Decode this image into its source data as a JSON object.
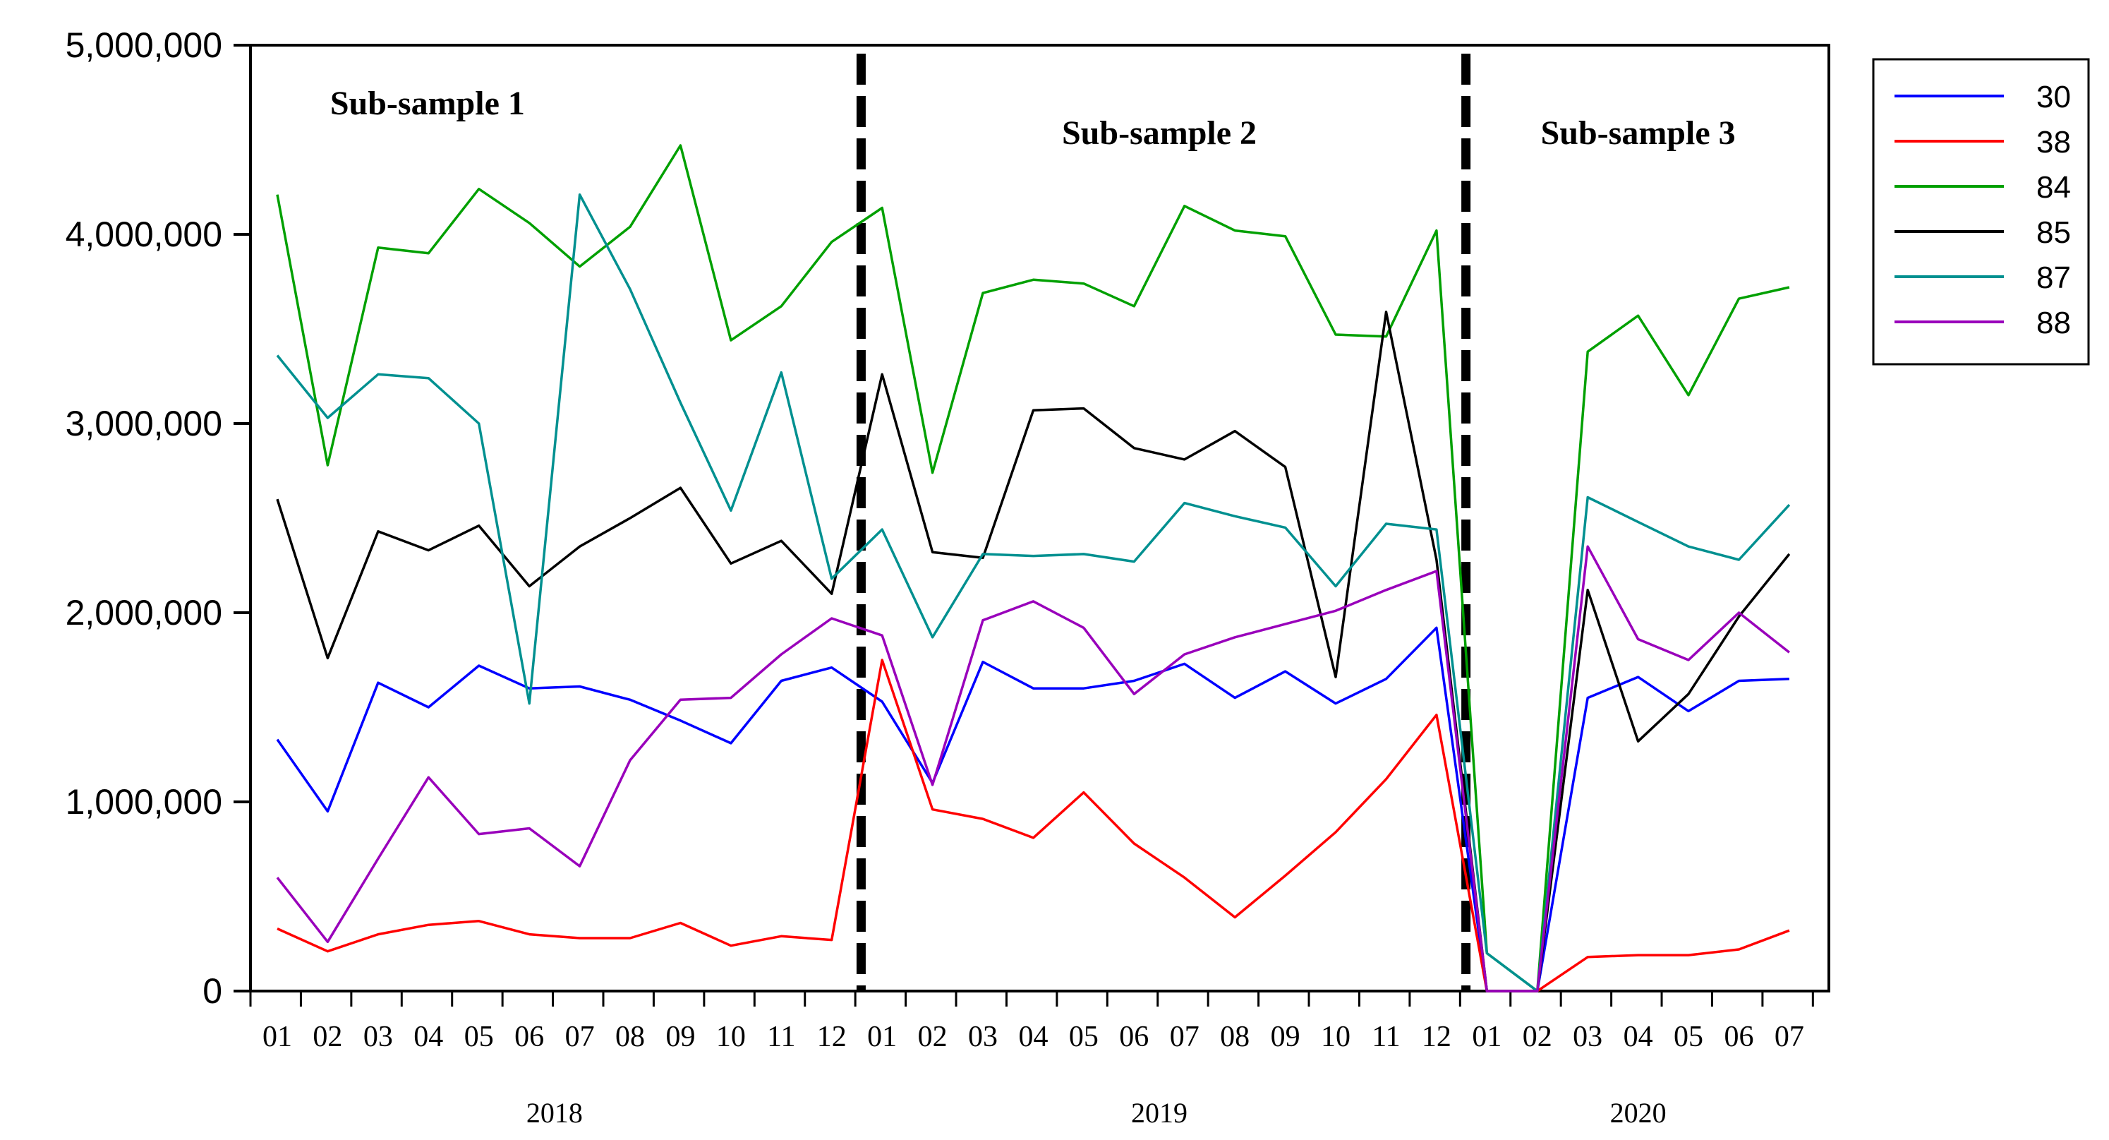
{
  "chart_data": {
    "type": "line",
    "title": "",
    "xlabel": "",
    "ylabel": "",
    "ylim": [
      0,
      5000000
    ],
    "yticks": [
      0,
      1000000,
      2000000,
      3000000,
      4000000,
      5000000
    ],
    "ytick_labels": [
      "0",
      "1,000,000",
      "2,000,000",
      "3,000,000",
      "4,000,000",
      "5,000,000"
    ],
    "categories": [
      "01",
      "02",
      "03",
      "04",
      "05",
      "06",
      "07",
      "08",
      "09",
      "10",
      "11",
      "12",
      "01",
      "02",
      "03",
      "04",
      "05",
      "06",
      "07",
      "08",
      "09",
      "10",
      "11",
      "12",
      "01",
      "02",
      "03",
      "04",
      "05",
      "06",
      "07"
    ],
    "years": [
      {
        "label": "2018",
        "start": 0,
        "end": 11
      },
      {
        "label": "2019",
        "start": 12,
        "end": 23
      },
      {
        "label": "2020",
        "start": 24,
        "end": 30
      }
    ],
    "regions": [
      {
        "label": "Sub-sample 1",
        "start": 0,
        "end": 11
      },
      {
        "label": "Sub-sample 2",
        "start": 12,
        "end": 23
      },
      {
        "label": "Sub-sample 3",
        "start": 24,
        "end": 30
      }
    ],
    "breaks_after_index": [
      11,
      23
    ],
    "legend_position": "top-right outside",
    "series": [
      {
        "name": "30",
        "color": "#0000ff",
        "values": [
          1330000,
          950000,
          1630000,
          1500000,
          1720000,
          1600000,
          1610000,
          1540000,
          1430000,
          1310000,
          1640000,
          1710000,
          1530000,
          1100000,
          1740000,
          1600000,
          1600000,
          1640000,
          1730000,
          1550000,
          1690000,
          1520000,
          1650000,
          1920000,
          0,
          0,
          1550000,
          1660000,
          1480000,
          1640000,
          1650000
        ]
      },
      {
        "name": "38",
        "color": "#ff0000",
        "values": [
          330000,
          210000,
          300000,
          350000,
          370000,
          300000,
          280000,
          280000,
          360000,
          240000,
          290000,
          270000,
          1750000,
          960000,
          910000,
          810000,
          1050000,
          780000,
          600000,
          390000,
          610000,
          840000,
          1120000,
          1460000,
          0,
          0,
          180000,
          190000,
          190000,
          220000,
          320000
        ]
      },
      {
        "name": "84",
        "color": "#00a000",
        "values": [
          4210000,
          2780000,
          3930000,
          3900000,
          4240000,
          4060000,
          3830000,
          4040000,
          4470000,
          3440000,
          3620000,
          3960000,
          4140000,
          2740000,
          3690000,
          3760000,
          3740000,
          3620000,
          4150000,
          4020000,
          3990000,
          3470000,
          3460000,
          4020000,
          200000,
          0,
          3380000,
          3570000,
          3150000,
          3660000,
          3720000
        ]
      },
      {
        "name": "85",
        "color": "#000000",
        "values": [
          2600000,
          1760000,
          2430000,
          2330000,
          2460000,
          2140000,
          2350000,
          2500000,
          2660000,
          2260000,
          2380000,
          2100000,
          3260000,
          2320000,
          2290000,
          3070000,
          3080000,
          2870000,
          2810000,
          2960000,
          2770000,
          1660000,
          3590000,
          2280000,
          0,
          0,
          2120000,
          1320000,
          1570000,
          1980000,
          2310000
        ]
      },
      {
        "name": "87",
        "color": "#009090",
        "values": [
          3360000,
          3030000,
          3260000,
          3240000,
          3000000,
          1520000,
          4210000,
          3710000,
          3110000,
          2540000,
          3270000,
          2180000,
          2440000,
          1870000,
          2310000,
          2300000,
          2310000,
          2270000,
          2580000,
          2510000,
          2450000,
          2140000,
          2470000,
          2440000,
          200000,
          0,
          2610000,
          2480000,
          2350000,
          2280000,
          2570000
        ]
      },
      {
        "name": "88",
        "color": "#9900bb",
        "values": [
          600000,
          260000,
          700000,
          1130000,
          830000,
          860000,
          660000,
          1220000,
          1540000,
          1550000,
          1780000,
          1970000,
          1880000,
          1090000,
          1960000,
          2060000,
          1920000,
          1570000,
          1780000,
          1870000,
          1940000,
          2010000,
          2120000,
          2220000,
          0,
          0,
          2350000,
          1860000,
          1750000,
          2000000,
          1790000
        ]
      }
    ]
  }
}
